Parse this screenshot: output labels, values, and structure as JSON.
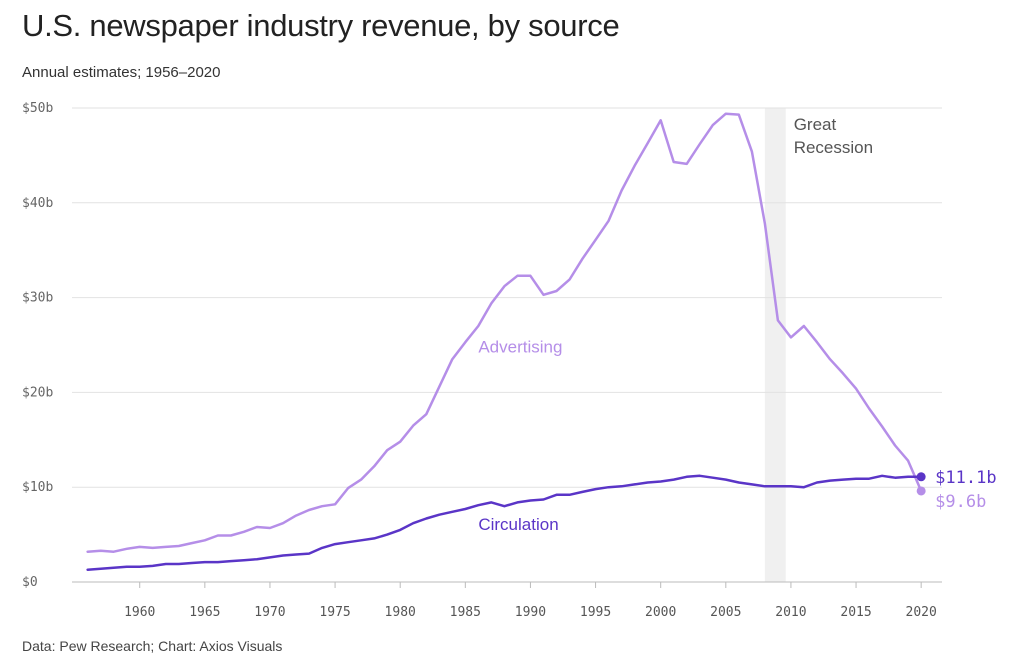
{
  "chart_data": {
    "type": "line",
    "title": "U.S. newspaper industry revenue, by source",
    "subtitle": "Annual estimates; 1956–2020",
    "source": "Data: Pew Research; Chart: Axios Visuals",
    "x_ticks": [
      1960,
      1965,
      1970,
      1975,
      1980,
      1985,
      1990,
      1995,
      2000,
      2005,
      2010,
      2015,
      2020
    ],
    "x_tick_labels": [
      "1960",
      "1965",
      "1970",
      "1975",
      "1980",
      "1985",
      "1990",
      "1995",
      "2000",
      "2005",
      "2010",
      "2015",
      "2020"
    ],
    "xlim": [
      1956,
      2020
    ],
    "y_ticks": [
      0,
      10,
      20,
      30,
      40,
      50
    ],
    "y_tick_labels": [
      "$0",
      "$10b",
      "$20b",
      "$30b",
      "$40b",
      "$50b"
    ],
    "ylim": [
      0,
      50
    ],
    "grid": true,
    "annotation": {
      "lines": [
        "Great",
        "Recession"
      ],
      "range": [
        2008,
        2009.6
      ]
    },
    "series": [
      {
        "name": "Advertising",
        "color": "#b58ee8",
        "end_label": "$9.6b",
        "x": [
          1956,
          1957,
          1958,
          1959,
          1960,
          1961,
          1962,
          1963,
          1964,
          1965,
          1966,
          1967,
          1968,
          1969,
          1970,
          1971,
          1972,
          1973,
          1974,
          1975,
          1976,
          1977,
          1978,
          1979,
          1980,
          1981,
          1982,
          1983,
          1984,
          1985,
          1986,
          1987,
          1988,
          1989,
          1990,
          1991,
          1992,
          1993,
          1994,
          1995,
          1996,
          1997,
          1998,
          1999,
          2000,
          2001,
          2002,
          2003,
          2004,
          2005,
          2006,
          2007,
          2008,
          2009,
          2010,
          2011,
          2012,
          2013,
          2014,
          2015,
          2016,
          2017,
          2018,
          2019,
          2020
        ],
        "values": [
          3.2,
          3.3,
          3.2,
          3.5,
          3.7,
          3.6,
          3.7,
          3.8,
          4.1,
          4.4,
          4.9,
          4.9,
          5.3,
          5.8,
          5.7,
          6.2,
          7.0,
          7.6,
          8.0,
          8.2,
          9.9,
          10.8,
          12.2,
          13.9,
          14.8,
          16.5,
          17.7,
          20.6,
          23.5,
          25.3,
          27.0,
          29.4,
          31.2,
          32.3,
          32.3,
          30.3,
          30.7,
          31.9,
          34.1,
          36.1,
          38.1,
          41.3,
          43.9,
          46.3,
          48.7,
          44.3,
          44.1,
          46.2,
          48.2,
          49.4,
          49.3,
          45.4,
          37.8,
          27.6,
          25.8,
          27.0,
          25.3,
          23.5,
          22.0,
          20.4,
          18.3,
          16.4,
          14.4,
          12.8,
          9.6
        ]
      },
      {
        "name": "Circulation",
        "color": "#5a35c7",
        "end_label": "$11.1b",
        "x": [
          1956,
          1957,
          1958,
          1959,
          1960,
          1961,
          1962,
          1963,
          1964,
          1965,
          1966,
          1967,
          1968,
          1969,
          1970,
          1971,
          1972,
          1973,
          1974,
          1975,
          1976,
          1977,
          1978,
          1979,
          1980,
          1981,
          1982,
          1983,
          1984,
          1985,
          1986,
          1987,
          1988,
          1989,
          1990,
          1991,
          1992,
          1993,
          1994,
          1995,
          1996,
          1997,
          1998,
          1999,
          2000,
          2001,
          2002,
          2003,
          2004,
          2005,
          2006,
          2007,
          2008,
          2009,
          2010,
          2011,
          2012,
          2013,
          2014,
          2015,
          2016,
          2017,
          2018,
          2019,
          2020
        ],
        "values": [
          1.3,
          1.4,
          1.5,
          1.6,
          1.6,
          1.7,
          1.9,
          1.9,
          2.0,
          2.1,
          2.1,
          2.2,
          2.3,
          2.4,
          2.6,
          2.8,
          2.9,
          3.0,
          3.6,
          4.0,
          4.2,
          4.4,
          4.6,
          5.0,
          5.5,
          6.2,
          6.7,
          7.1,
          7.4,
          7.7,
          8.1,
          8.4,
          8.0,
          8.4,
          8.6,
          8.7,
          9.2,
          9.2,
          9.5,
          9.8,
          10.0,
          10.1,
          10.3,
          10.5,
          10.6,
          10.8,
          11.1,
          11.2,
          11.0,
          10.8,
          10.5,
          10.3,
          10.1,
          10.1,
          10.1,
          10.0,
          10.5,
          10.7,
          10.8,
          10.9,
          10.9,
          11.2,
          11.0,
          11.1,
          11.1
        ]
      }
    ]
  }
}
